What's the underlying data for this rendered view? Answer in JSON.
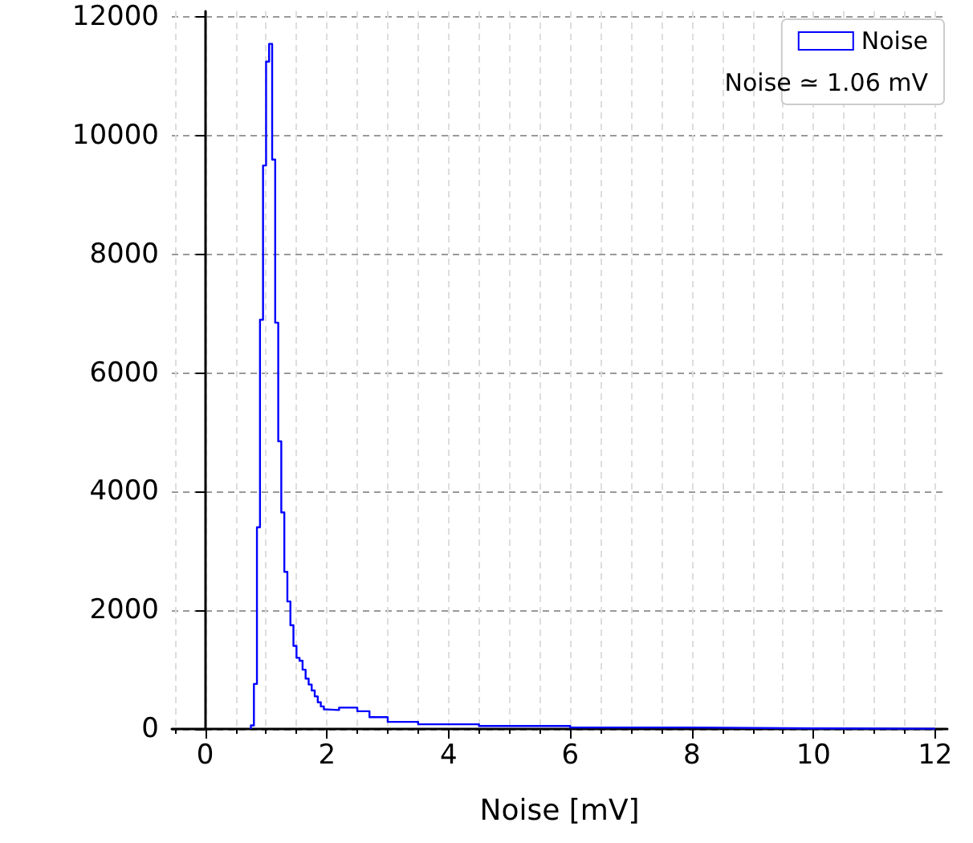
{
  "chart_data": {
    "type": "histogram",
    "xlabel": "Noise [mV]",
    "bins": [
      0.75,
      0.8,
      0.85,
      0.9,
      0.95,
      1.0,
      1.05,
      1.1,
      1.15,
      1.2,
      1.25,
      1.3,
      1.35,
      1.4,
      1.45,
      1.5,
      1.55,
      1.6,
      1.65,
      1.7,
      1.75,
      1.8,
      1.85,
      1.9,
      1.95,
      2.0,
      2.2,
      2.5,
      2.7,
      3.0,
      3.5,
      4.5,
      6.0,
      8.0,
      10.0,
      12.0
    ],
    "series": [
      {
        "name": "Noise",
        "color": "#0000ff",
        "values": [
          60,
          760,
          3400,
          6900,
          9500,
          11250,
          11550,
          9600,
          6850,
          4850,
          3650,
          2650,
          2150,
          1750,
          1400,
          1200,
          1150,
          1000,
          850,
          750,
          650,
          550,
          450,
          380,
          330,
          320,
          360,
          300,
          200,
          120,
          80,
          50,
          25,
          10,
          5
        ]
      }
    ],
    "annotations": [
      "Noise ≃ 1.06 mV"
    ],
    "xlim": [
      -0.55,
      12.2
    ],
    "xticks": [
      0,
      2,
      4,
      6,
      8,
      10,
      12
    ],
    "ylim": [
      0,
      12100
    ],
    "yticks": [
      0,
      2000,
      4000,
      6000,
      8000,
      10000,
      12000
    ],
    "grid": true,
    "legend": "top right"
  }
}
